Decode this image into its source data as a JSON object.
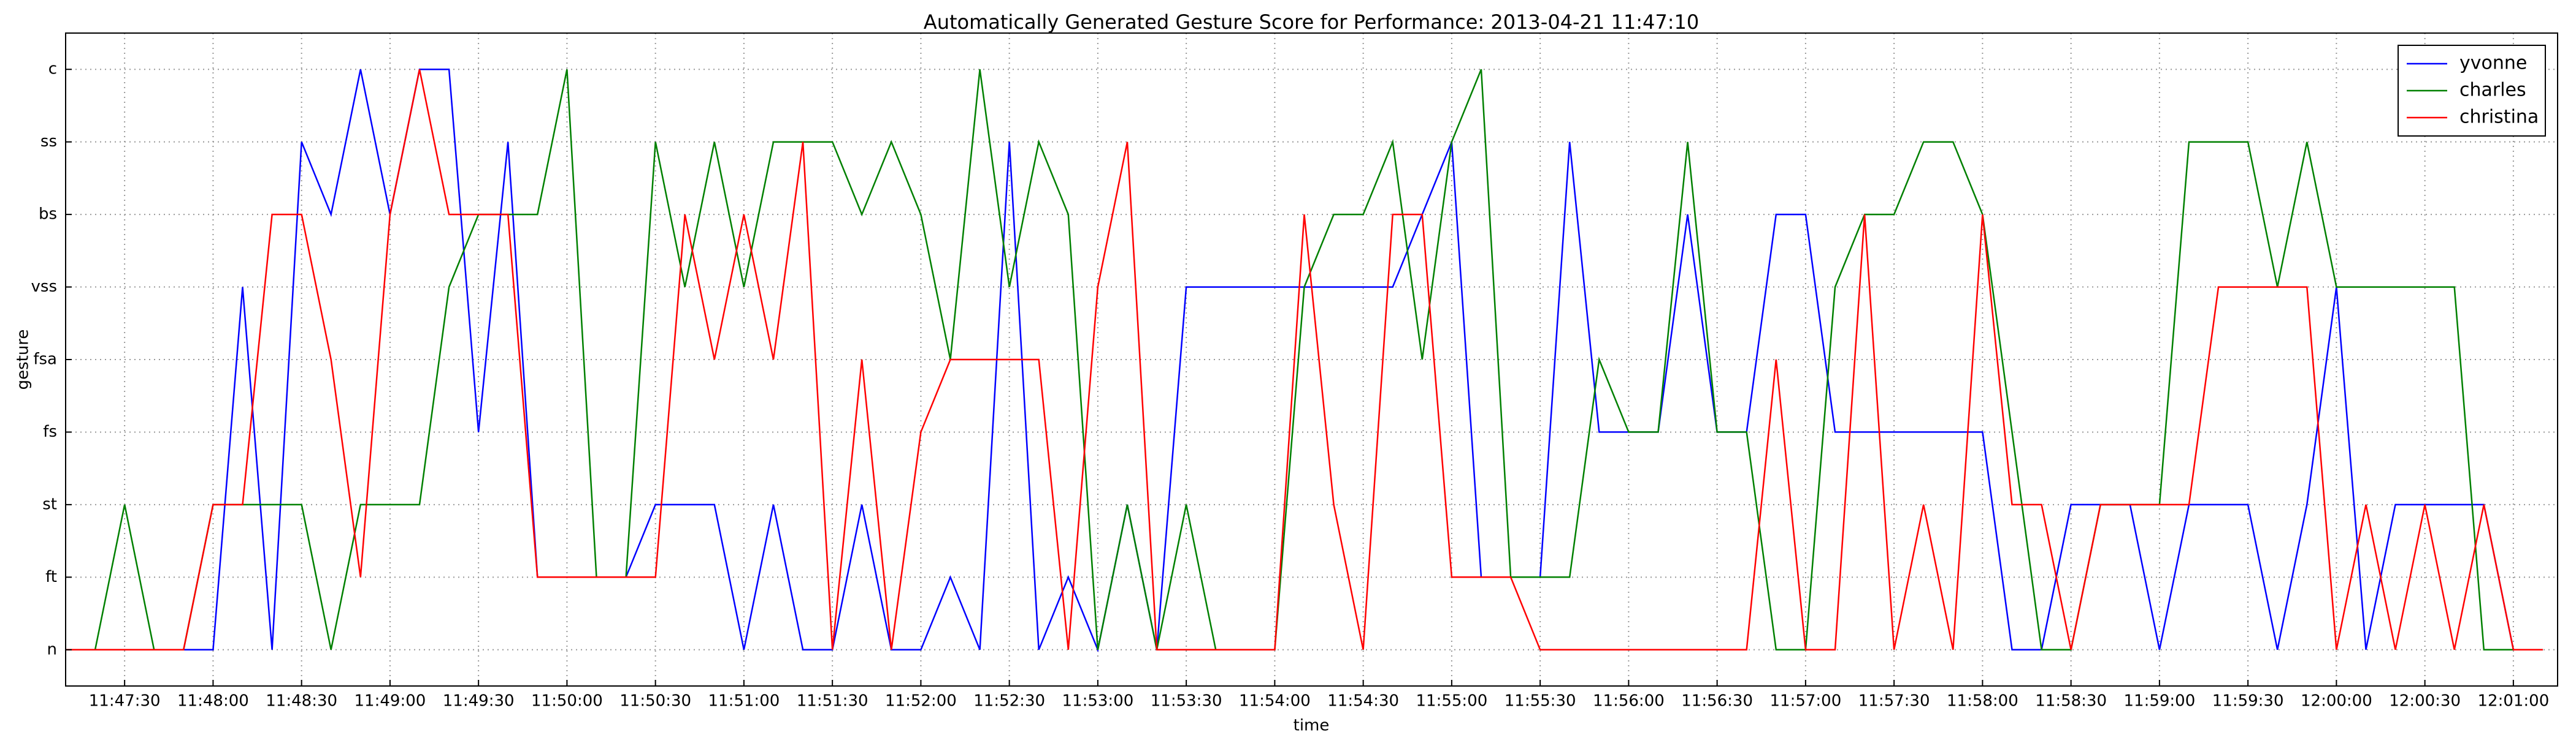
{
  "chart_data": {
    "type": "line",
    "title": "Automatically Generated Gesture Score for Performance: 2013-04-21 11:47:10",
    "x_label": "time",
    "y_label": "gesture",
    "ycategories": [
      "n",
      "ft",
      "st",
      "fs",
      "fsa",
      "vss",
      "bs",
      "ss",
      "c"
    ],
    "xlim": [
      "11:47:10",
      "12:01:15"
    ],
    "xticks": [
      "11:47:30",
      "11:48:00",
      "11:48:30",
      "11:49:00",
      "11:49:30",
      "11:50:00",
      "11:50:30",
      "11:51:00",
      "11:51:30",
      "11:52:00",
      "11:52:30",
      "11:53:00",
      "11:53:30",
      "11:54:00",
      "11:54:30",
      "11:55:00",
      "11:55:30",
      "11:56:00",
      "11:56:30",
      "11:57:00",
      "11:57:30",
      "11:58:00",
      "11:58:30",
      "11:59:00",
      "11:59:30",
      "12:00:00",
      "12:00:30",
      "12:01:00"
    ],
    "grid": true,
    "legend": "upper right",
    "x": [
      "11:47:10",
      "11:47:20",
      "11:47:30",
      "11:47:40",
      "11:47:50",
      "11:48:00",
      "11:48:10",
      "11:48:20",
      "11:48:30",
      "11:48:40",
      "11:48:50",
      "11:49:00",
      "11:49:10",
      "11:49:20",
      "11:49:30",
      "11:49:40",
      "11:49:50",
      "11:50:00",
      "11:50:10",
      "11:50:20",
      "11:50:30",
      "11:50:40",
      "11:50:50",
      "11:51:00",
      "11:51:10",
      "11:51:20",
      "11:51:30",
      "11:51:40",
      "11:51:50",
      "11:52:00",
      "11:52:10",
      "11:52:20",
      "11:52:30",
      "11:52:40",
      "11:52:50",
      "11:53:00",
      "11:53:10",
      "11:53:20",
      "11:53:30",
      "11:53:40",
      "11:53:50",
      "11:54:00",
      "11:54:10",
      "11:54:20",
      "11:54:30",
      "11:54:40",
      "11:54:50",
      "11:55:00",
      "11:55:10",
      "11:55:20",
      "11:55:30",
      "11:55:40",
      "11:55:50",
      "11:56:00",
      "11:56:10",
      "11:56:20",
      "11:56:30",
      "11:56:40",
      "11:56:50",
      "11:57:00",
      "11:57:10",
      "11:57:20",
      "11:57:30",
      "11:57:40",
      "11:57:50",
      "11:58:00",
      "11:58:10",
      "11:58:20",
      "11:58:30",
      "11:58:40",
      "11:58:50",
      "11:59:00",
      "11:59:10",
      "11:59:20",
      "11:59:30",
      "11:59:40",
      "11:59:50",
      "12:00:00",
      "12:00:10",
      "12:00:20",
      "12:00:30",
      "12:00:40",
      "12:00:50",
      "12:01:00",
      "12:01:10"
    ],
    "series": [
      {
        "name": "yvonne",
        "color": "#0000ff",
        "values": [
          "n",
          "n",
          "n",
          "n",
          "n",
          "n",
          "vss",
          "n",
          "ss",
          "bs",
          "c",
          "bs",
          "c",
          "c",
          "fs",
          "ss",
          "ft",
          "ft",
          "ft",
          "ft",
          "st",
          "st",
          "st",
          "n",
          "st",
          "n",
          "n",
          "st",
          "n",
          "n",
          "ft",
          "n",
          "ss",
          "n",
          "ft",
          "n",
          "st",
          "n",
          "vss",
          "vss",
          "vss",
          "vss",
          "vss",
          "vss",
          "vss",
          "vss",
          "bs",
          "ss",
          "ft",
          "ft",
          "ft",
          "ss",
          "fs",
          "fs",
          "fs",
          "bs",
          "fs",
          "fs",
          "bs",
          "bs",
          "fs",
          "fs",
          "fs",
          "fs",
          "fs",
          "fs",
          "n",
          "n",
          "st",
          "st",
          "st",
          "n",
          "st",
          "st",
          "st",
          "n",
          "st",
          "vss",
          "n",
          "st",
          "st",
          "st",
          "st",
          "n",
          "n"
        ]
      },
      {
        "name": "charles",
        "color": "#008000",
        "values": [
          "n",
          "n",
          "st",
          "n",
          "n",
          "st",
          "st",
          "st",
          "st",
          "n",
          "st",
          "st",
          "st",
          "vss",
          "bs",
          "bs",
          "bs",
          "c",
          "ft",
          "ft",
          "ss",
          "vss",
          "ss",
          "vss",
          "ss",
          "ss",
          "ss",
          "bs",
          "ss",
          "bs",
          "fsa",
          "c",
          "vss",
          "ss",
          "bs",
          "n",
          "st",
          "n",
          "st",
          "n",
          "n",
          "n",
          "vss",
          "bs",
          "bs",
          "ss",
          "fsa",
          "ss",
          "c",
          "ft",
          "ft",
          "ft",
          "fsa",
          "fs",
          "fs",
          "ss",
          "fs",
          "fs",
          "n",
          "n",
          "vss",
          "bs",
          "bs",
          "ss",
          "ss",
          "bs",
          "fs",
          "n",
          "n",
          "st",
          "st",
          "st",
          "ss",
          "ss",
          "ss",
          "vss",
          "ss",
          "vss",
          "vss",
          "vss",
          "vss",
          "vss",
          "n",
          "n",
          "n"
        ]
      },
      {
        "name": "christina",
        "color": "#ff0000",
        "values": [
          "n",
          "n",
          "n",
          "n",
          "n",
          "st",
          "st",
          "bs",
          "bs",
          "fsa",
          "ft",
          "bs",
          "c",
          "bs",
          "bs",
          "bs",
          "ft",
          "ft",
          "ft",
          "ft",
          "ft",
          "bs",
          "fsa",
          "bs",
          "fsa",
          "ss",
          "n",
          "fsa",
          "n",
          "fs",
          "fsa",
          "fsa",
          "fsa",
          "fsa",
          "n",
          "vss",
          "ss",
          "n",
          "n",
          "n",
          "n",
          "n",
          "bs",
          "st",
          "n",
          "bs",
          "bs",
          "ft",
          "ft",
          "ft",
          "n",
          "n",
          "n",
          "n",
          "n",
          "n",
          "n",
          "n",
          "fsa",
          "n",
          "n",
          "bs",
          "n",
          "st",
          "n",
          "bs",
          "st",
          "st",
          "n",
          "st",
          "st",
          "st",
          "st",
          "vss",
          "vss",
          "vss",
          "vss",
          "n",
          "st",
          "n",
          "st",
          "n",
          "st",
          "n",
          "n"
        ]
      }
    ]
  }
}
